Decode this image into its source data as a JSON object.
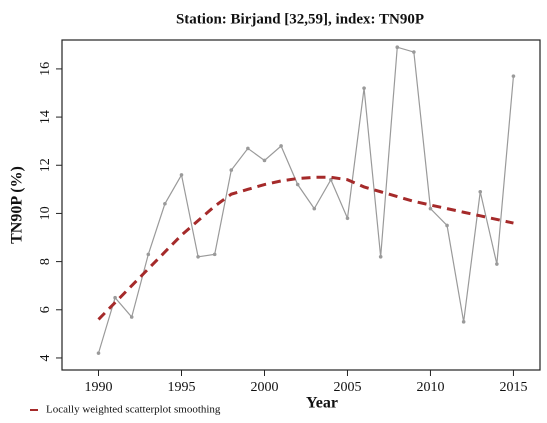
{
  "chart_data": {
    "type": "line",
    "title": "Station: Birjand [32,59], index: TN90P",
    "x_label": "Year",
    "y_label": "TN90P (%)",
    "x": [
      1990,
      1991,
      1992,
      1993,
      1994,
      1995,
      1996,
      1997,
      1998,
      1999,
      2000,
      2001,
      2002,
      2003,
      2004,
      2005,
      2006,
      2007,
      2008,
      2009,
      2010,
      2011,
      2012,
      2013,
      2014,
      2015
    ],
    "series": [
      {
        "color": "#9a9a9a",
        "values": [
          4.2,
          6.5,
          5.7,
          8.3,
          10.4,
          11.6,
          8.2,
          8.3,
          11.8,
          12.7,
          12.2,
          12.8,
          11.2,
          10.2,
          11.4,
          9.8,
          15.2,
          8.2,
          16.9,
          16.7,
          10.2,
          9.5,
          5.5,
          10.9,
          7.9,
          15.7
        ]
      },
      {
        "name": "Locally weighted scatterplot smoothing",
        "color": "#a52a2a",
        "dashed": true,
        "values": [
          5.6,
          6.3,
          7.0,
          7.7,
          8.4,
          9.1,
          9.7,
          10.3,
          10.8,
          11.0,
          11.2,
          11.35,
          11.45,
          11.5,
          11.5,
          11.4,
          11.1,
          10.9,
          10.7,
          10.5,
          10.35,
          10.2,
          10.05,
          9.9,
          9.75,
          9.6
        ]
      }
    ],
    "xlim": [
      1987.8,
      2016.6
    ],
    "ylim": [
      3.5,
      17.2
    ],
    "xticks": [
      1990,
      1995,
      2000,
      2005,
      2010,
      2015
    ],
    "yticks": [
      4,
      6,
      8,
      10,
      12,
      14,
      16
    ],
    "legend": "bottom-left"
  }
}
